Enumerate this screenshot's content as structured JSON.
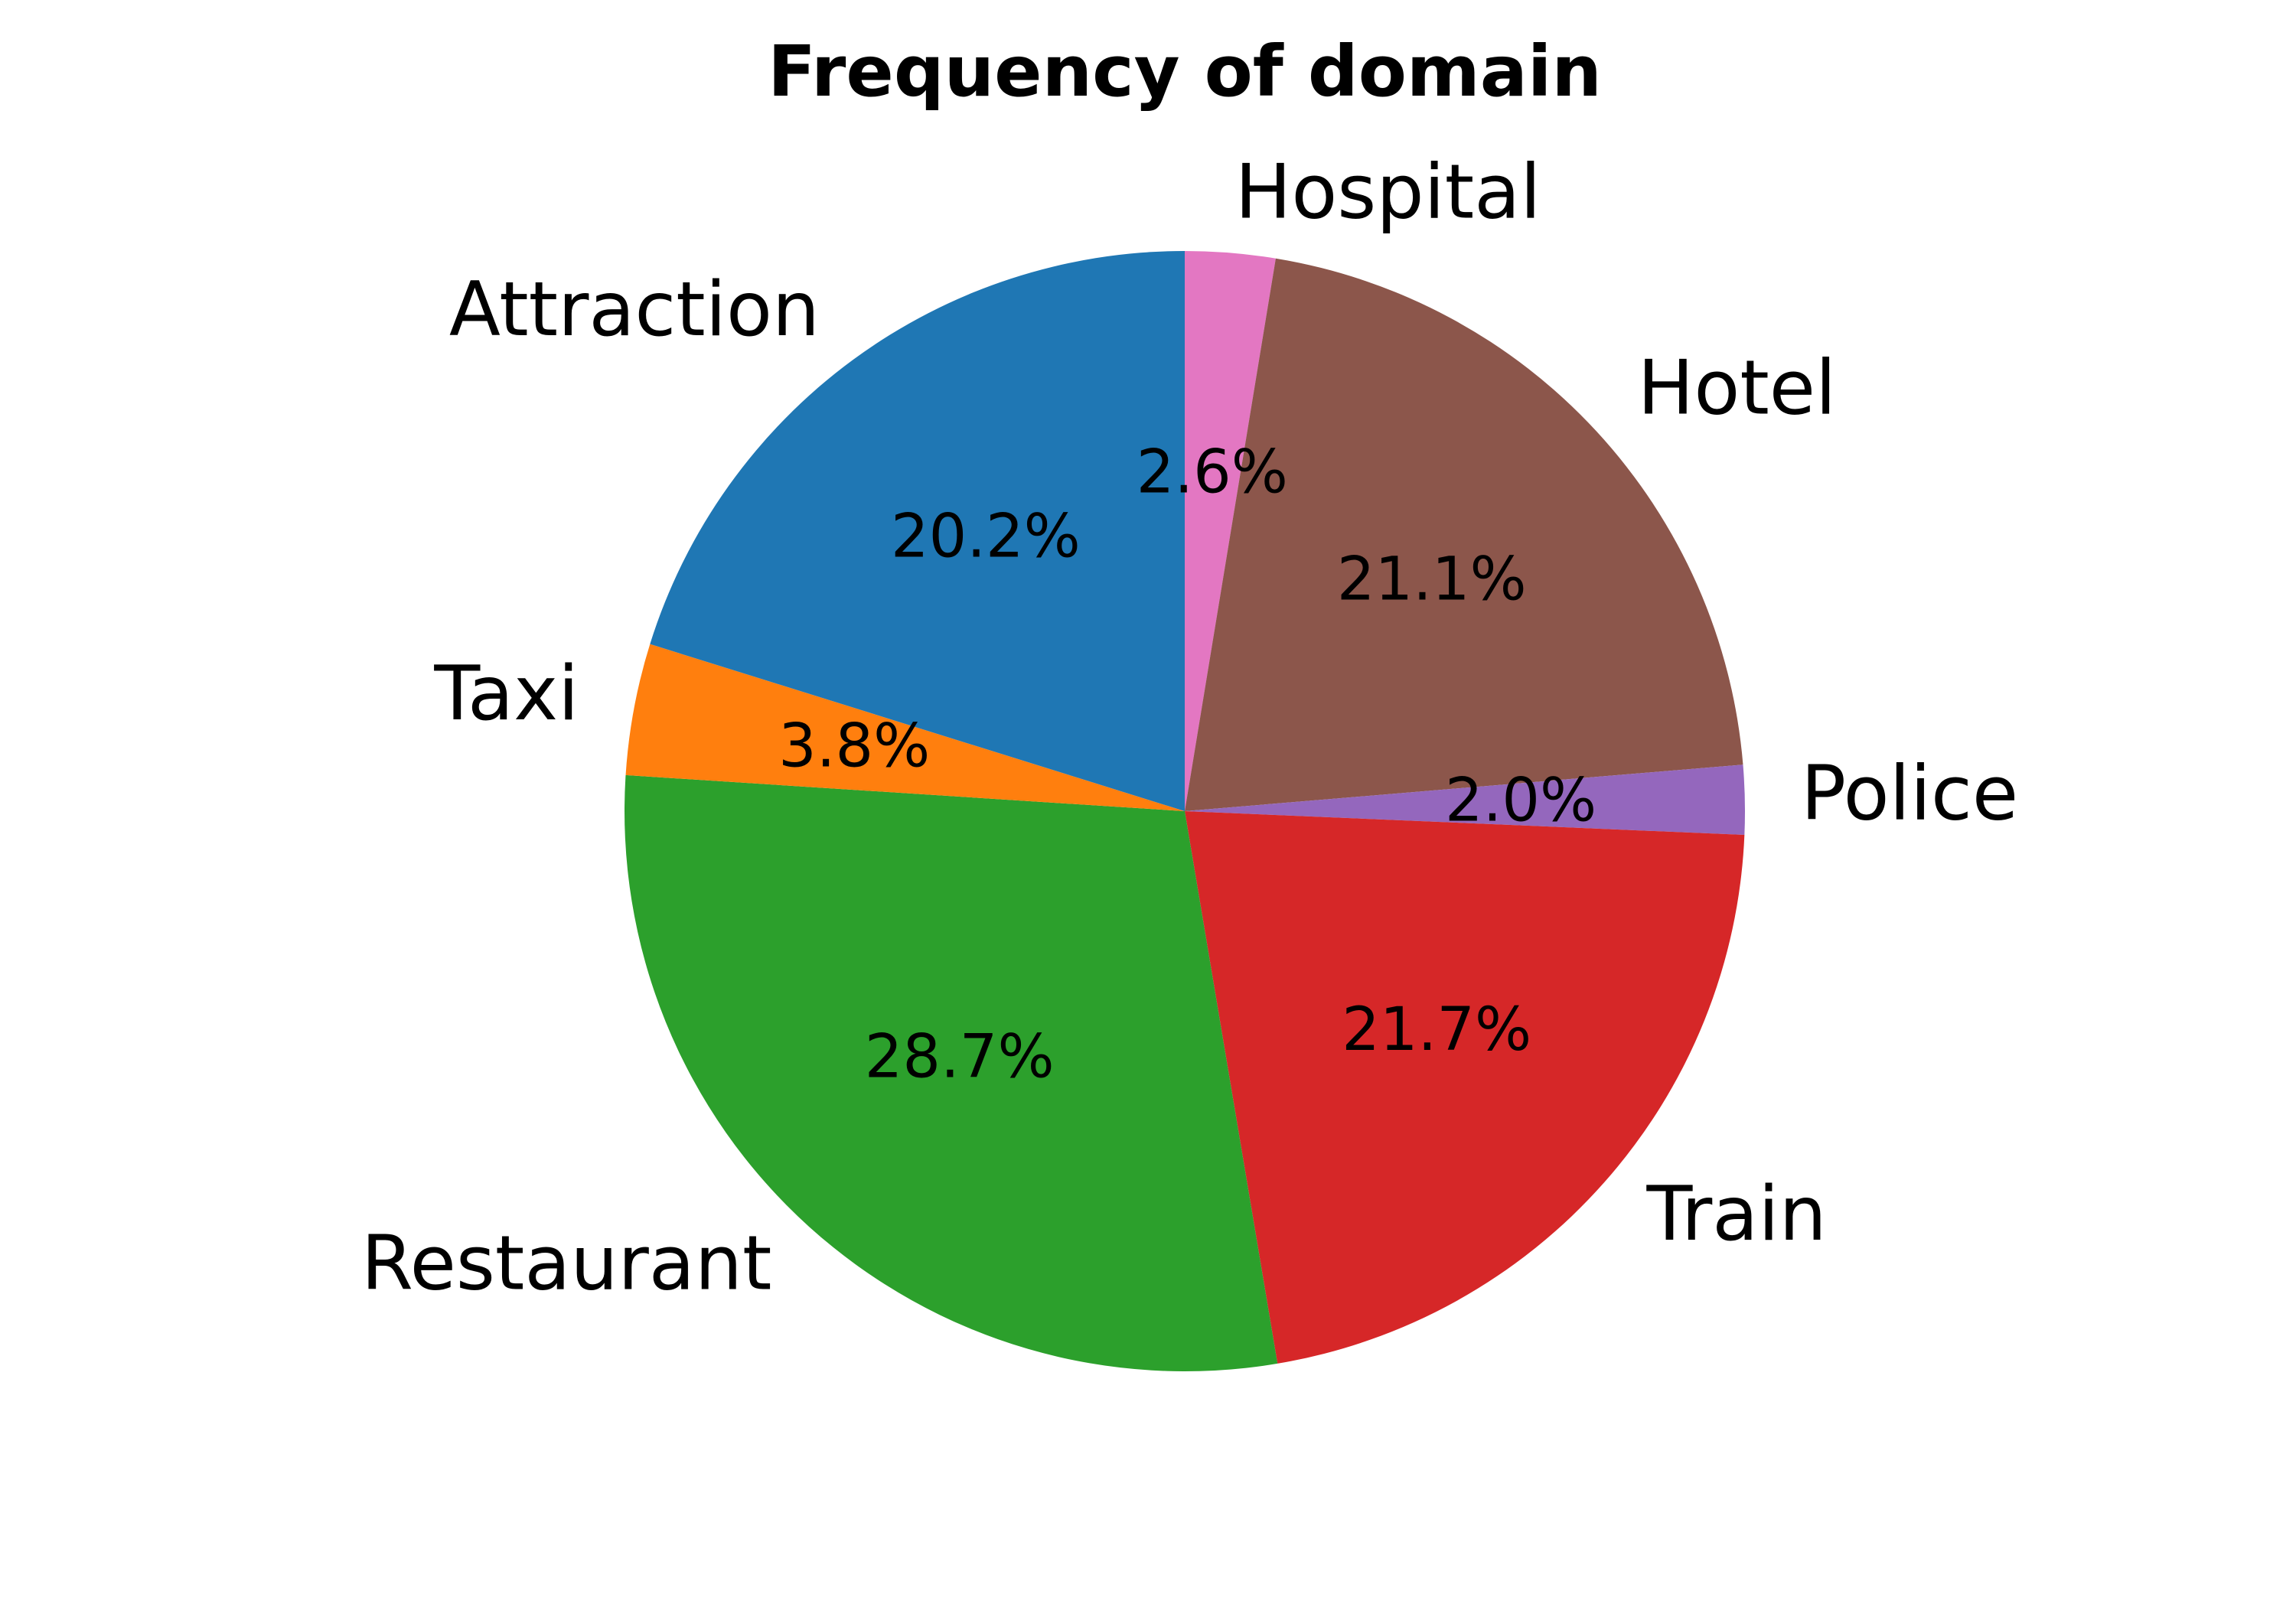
{
  "chart_data": {
    "type": "pie",
    "title": "Frequency of domain",
    "start_angle_deg": 90,
    "direction": "clockwise",
    "slices": [
      {
        "label": "Hospital",
        "value": 2.6,
        "pct_label": "2.6%",
        "color": "#e377c2"
      },
      {
        "label": "Hotel",
        "value": 21.1,
        "pct_label": "21.1%",
        "color": "#8c564b"
      },
      {
        "label": "Police",
        "value": 2.0,
        "pct_label": "2.0%",
        "color": "#9467bd"
      },
      {
        "label": "Train",
        "value": 21.7,
        "pct_label": "21.7%",
        "color": "#d62728"
      },
      {
        "label": "Restaurant",
        "value": 28.7,
        "pct_label": "28.7%",
        "color": "#2ca02c"
      },
      {
        "label": "Taxi",
        "value": 3.8,
        "pct_label": "3.8%",
        "color": "#ff7f0e"
      },
      {
        "label": "Attraction",
        "value": 20.2,
        "pct_label": "20.2%",
        "color": "#1f77b4"
      }
    ]
  }
}
